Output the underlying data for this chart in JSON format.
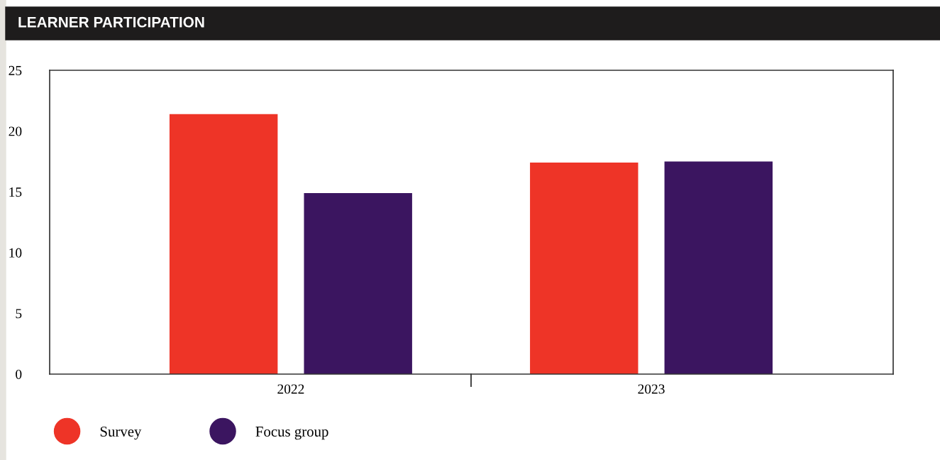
{
  "chart_data": {
    "type": "bar",
    "title": "LEARNER PARTICIPATION",
    "categories": [
      "2022",
      "2023"
    ],
    "series": [
      {
        "name": "Survey",
        "color": "#ee3427",
        "values": [
          21.4,
          17.4
        ]
      },
      {
        "name": "Focus group",
        "color": "#3b1560",
        "values": [
          14.9,
          17.5
        ]
      }
    ],
    "ylim": [
      0,
      25
    ],
    "yticks": [
      0,
      5,
      10,
      15,
      20,
      25
    ],
    "grid": false,
    "legend": "bottom left"
  }
}
